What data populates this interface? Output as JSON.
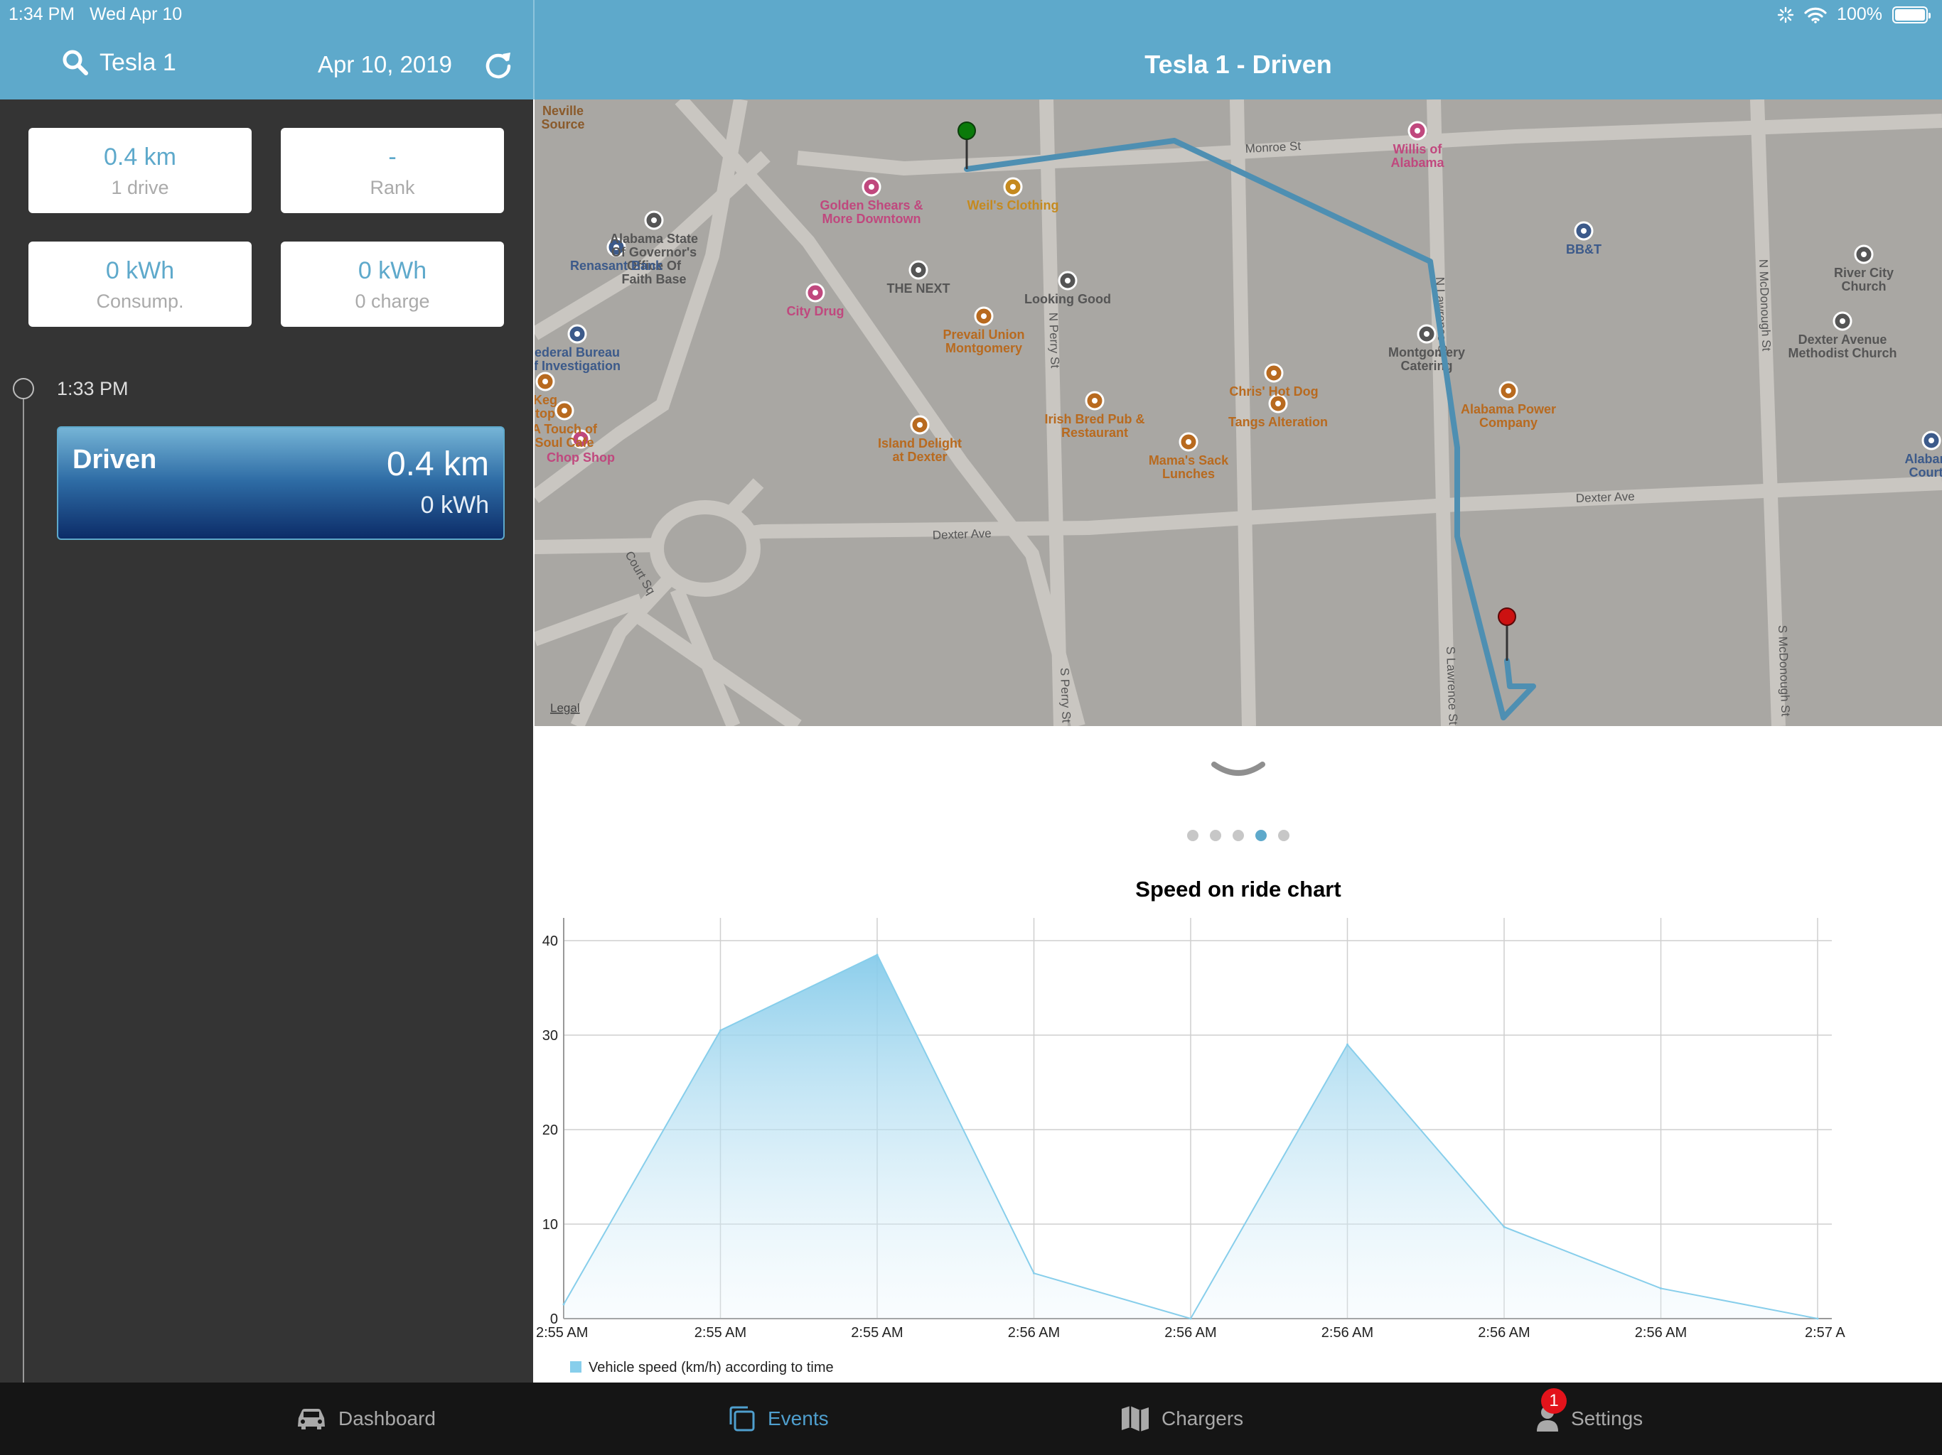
{
  "status_bar": {
    "time": "1:34 PM",
    "date": "Wed Apr 10",
    "battery": "100%"
  },
  "left_header": {
    "vehicle": "Tesla 1",
    "date": "Apr 10, 2019"
  },
  "right_header": {
    "title": "Tesla 1 - Driven"
  },
  "stats": [
    {
      "value": "0.4 km",
      "label": "1 drive"
    },
    {
      "value": "-",
      "label": "Rank"
    },
    {
      "value": "0 kWh",
      "label": "Consump."
    },
    {
      "value": "0 kWh",
      "label": "0 charge"
    }
  ],
  "timeline": {
    "time": "1:33 PM"
  },
  "event": {
    "title": "Driven",
    "distance": "0.4 km",
    "energy": "0 kWh"
  },
  "map": {
    "streets": [
      "Monroe St",
      "Dexter Ave",
      "Dexter Ave",
      "N Perry St",
      "S Perry St",
      "N Lawrence St",
      "S Lawrence St",
      "N McDonough St",
      "S McDonough St",
      "Court Sq"
    ],
    "pois": [
      {
        "name": "Neville\nSource",
        "color": "#8a5a2b"
      },
      {
        "name": "Willis of\nAlabama",
        "color": "#c0487e"
      },
      {
        "name": "Golden Shears &\nMore Downtown",
        "color": "#c0487e"
      },
      {
        "name": "Weil's Clothing",
        "color": "#c58a1f"
      },
      {
        "name": "Alabama State\nOf Governor's\nOffice Of\nFaith Base",
        "color": "#555555"
      },
      {
        "name": "Renasant Bank",
        "color": "#3c5a8a"
      },
      {
        "name": "BB&T",
        "color": "#3c5a8a"
      },
      {
        "name": "River City\nChurch",
        "color": "#555555"
      },
      {
        "name": "THE NEXT",
        "color": "#555555"
      },
      {
        "name": "Looking Good",
        "color": "#555555"
      },
      {
        "name": "City Drug",
        "color": "#c0487e"
      },
      {
        "name": "Prevail Union\nMontgomery",
        "color": "#b86a1f"
      },
      {
        "name": "Dexter Avenue\nMethodist Church",
        "color": "#555555"
      },
      {
        "name": "ederal Bureau\nf Investigation",
        "color": "#3c5a8a"
      },
      {
        "name": "Montgomery\nCatering",
        "color": "#555555"
      },
      {
        "name": "Keg\ntop",
        "color": "#b86a1f"
      },
      {
        "name": "Chris' Hot Dog",
        "color": "#b86a1f"
      },
      {
        "name": "Irish Bred Pub &\nRestaurant",
        "color": "#b86a1f"
      },
      {
        "name": "Tangs Alteration",
        "color": "#b86a1f"
      },
      {
        "name": "Alabama Power\nCompany",
        "color": "#b86a1f"
      },
      {
        "name": "A Touch of\nSoul Cafe",
        "color": "#b86a1f"
      },
      {
        "name": "Island Delight\nat Dexter",
        "color": "#b86a1f"
      },
      {
        "name": "Mama's Sack\nLunches",
        "color": "#b86a1f"
      },
      {
        "name": "Chop Shop",
        "color": "#c0487e"
      },
      {
        "name": "Alabama\nCourt a",
        "color": "#3c5a8a"
      }
    ],
    "legal": "Legal",
    "route_color": "#4e8fb2",
    "start_pin_color": "#0a7a0a",
    "end_pin_color": "#cc1111"
  },
  "pager": {
    "count": 5,
    "active": 3
  },
  "chart_data": {
    "type": "area",
    "title": "Speed on ride chart",
    "x": [
      "2:55 AM",
      "2:55 AM",
      "2:55 AM",
      "2:56 AM",
      "2:56 AM",
      "2:56 AM",
      "2:56 AM",
      "2:56 AM",
      "2:57 A"
    ],
    "series": [
      {
        "name": "Vehicle speed (km/h) according to time",
        "values": [
          1.5,
          30.5,
          38.5,
          4.8,
          0,
          29,
          9.7,
          3.2,
          0
        ],
        "color": "#87ceeb"
      }
    ],
    "ylim": [
      0,
      40
    ],
    "yticks": [
      0,
      10,
      20,
      30,
      40
    ],
    "grid": true,
    "legend": "bottom-left"
  },
  "tabs": [
    {
      "label": "Dashboard",
      "icon": "car-icon",
      "active": false
    },
    {
      "label": "Events",
      "icon": "events-icon",
      "active": true
    },
    {
      "label": "Chargers",
      "icon": "map-icon",
      "active": false
    },
    {
      "label": "Settings",
      "icon": "person-icon",
      "active": false,
      "badge": "1"
    }
  ]
}
